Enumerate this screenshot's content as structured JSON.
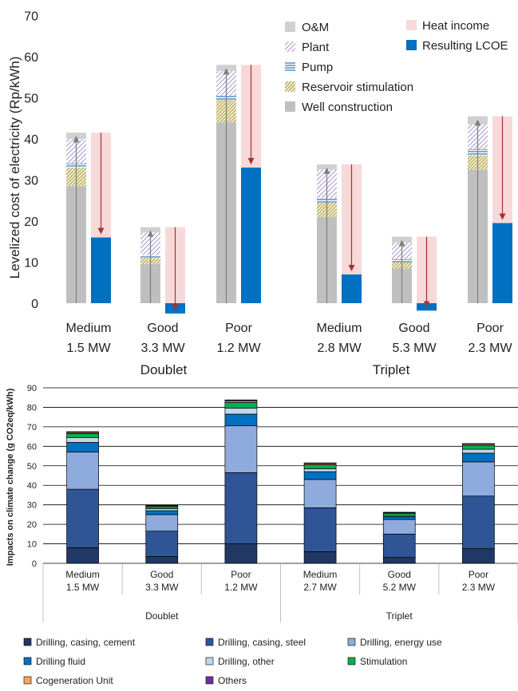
{
  "chart_data": [
    {
      "type": "bar",
      "title": "",
      "xlabel": "",
      "ylabel": "Levelized cost of electricity (Rp/kWh)",
      "ylim": [
        -5,
        70
      ],
      "yticks": [
        "0",
        "10",
        "20",
        "30",
        "40",
        "50",
        "60",
        "70"
      ],
      "categories": [
        {
          "line1": "Medium",
          "line2": "1.5 MW"
        },
        {
          "line1": "Good",
          "line2": "3.3 MW"
        },
        {
          "line1": "Poor",
          "line2": "1.2 MW"
        },
        {
          "line1": "Medium",
          "line2": "2.8 MW"
        },
        {
          "line1": "Good",
          "line2": "5.3 MW"
        },
        {
          "line1": "Poor",
          "line2": "2.3 MW"
        }
      ],
      "groups": [
        "Doublet",
        "Triplet"
      ],
      "stack_order": [
        "Well construction",
        "Reservoir stimulation",
        "Pump",
        "Plant",
        "O&M"
      ],
      "series": [
        {
          "name": "Well construction",
          "color": "#bfbfbf",
          "values": [
            28.5,
            9.5,
            44.0,
            21.0,
            8.5,
            32.5
          ]
        },
        {
          "name": "Reservoir stimulation",
          "color": "#c9b458",
          "values": [
            4.5,
            1.5,
            5.5,
            3.5,
            1.5,
            3.5
          ]
        },
        {
          "name": "Pump",
          "color": "#5b9bd5",
          "values": [
            1.0,
            0.7,
            1.0,
            1.0,
            0.7,
            1.5
          ]
        },
        {
          "name": "Plant",
          "color": "#9e8fc9",
          "values": [
            6.0,
            5.5,
            6.0,
            7.0,
            4.0,
            6.0
          ]
        },
        {
          "name": "O&M",
          "color": "#d0d0d0",
          "values": [
            1.5,
            1.3,
            1.5,
            1.3,
            1.5,
            2.0
          ]
        }
      ],
      "heat_income": {
        "name": "Heat income",
        "color": "#f8d9d9",
        "arrow_color": "#a6322b",
        "values": [
          41.5,
          18.5,
          58.0,
          33.8,
          16.2,
          45.5
        ]
      },
      "resulting_lcoe": {
        "name": "Resulting LCOE",
        "color": "#0070c0",
        "values": [
          16.0,
          -2.5,
          33.0,
          7.0,
          -1.8,
          19.5
        ]
      },
      "legend": {
        "left": [
          "O&M",
          "Plant",
          "Pump",
          "Reservoir stimulation",
          "Well construction"
        ],
        "right": [
          "Heat income",
          "Resulting LCOE"
        ],
        "placement": "top-right"
      }
    },
    {
      "type": "bar",
      "title": "",
      "xlabel": "",
      "ylabel": "Impacts on climate change (g CO2eq/kWh)",
      "ylim": [
        0,
        90
      ],
      "yticks": [
        "0",
        "10",
        "20",
        "30",
        "40",
        "50",
        "60",
        "70",
        "80",
        "90"
      ],
      "grid": true,
      "categories": [
        {
          "line1": "Medium",
          "line2": "1.5 MW"
        },
        {
          "line1": "Good",
          "line2": "3.3 MW"
        },
        {
          "line1": "Poor",
          "line2": "1.2 MW"
        },
        {
          "line1": "Medium",
          "line2": "2.7 MW"
        },
        {
          "line1": "Good",
          "line2": "5.2 MW"
        },
        {
          "line1": "Poor",
          "line2": "2.3 MW"
        }
      ],
      "groups": [
        "Doublet",
        "Triplet"
      ],
      "series": [
        {
          "name": "Drilling, casing, cement",
          "color": "#203864",
          "values": [
            8.0,
            3.5,
            10.0,
            6.0,
            3.0,
            7.5
          ]
        },
        {
          "name": "Drilling, casing, steel",
          "color": "#2f5597",
          "values": [
            30.0,
            13.0,
            36.5,
            22.5,
            12.0,
            27.0
          ]
        },
        {
          "name": "Drilling, energy use",
          "color": "#8faadc",
          "values": [
            19.0,
            8.5,
            24.0,
            14.5,
            7.5,
            17.5
          ]
        },
        {
          "name": "Drilling fluid",
          "color": "#0070c0",
          "values": [
            5.0,
            2.0,
            6.0,
            4.0,
            1.5,
            4.5
          ]
        },
        {
          "name": "Drilling, other",
          "color": "#bdd7ee",
          "values": [
            2.5,
            1.0,
            3.0,
            1.5,
            0.5,
            2.0
          ]
        },
        {
          "name": "Stimulation",
          "color": "#00b050",
          "values": [
            2.0,
            1.0,
            3.0,
            2.0,
            1.0,
            1.8
          ]
        },
        {
          "name": "Cogeneration Unit",
          "color": "#f4a460",
          "values": [
            0.6,
            0.4,
            0.8,
            0.6,
            0.4,
            0.7
          ]
        },
        {
          "name": "Others",
          "color": "#7030a0",
          "values": [
            0.4,
            0.3,
            0.5,
            0.4,
            0.3,
            0.4
          ]
        }
      ],
      "legend": {
        "placement": "bottom"
      }
    }
  ]
}
